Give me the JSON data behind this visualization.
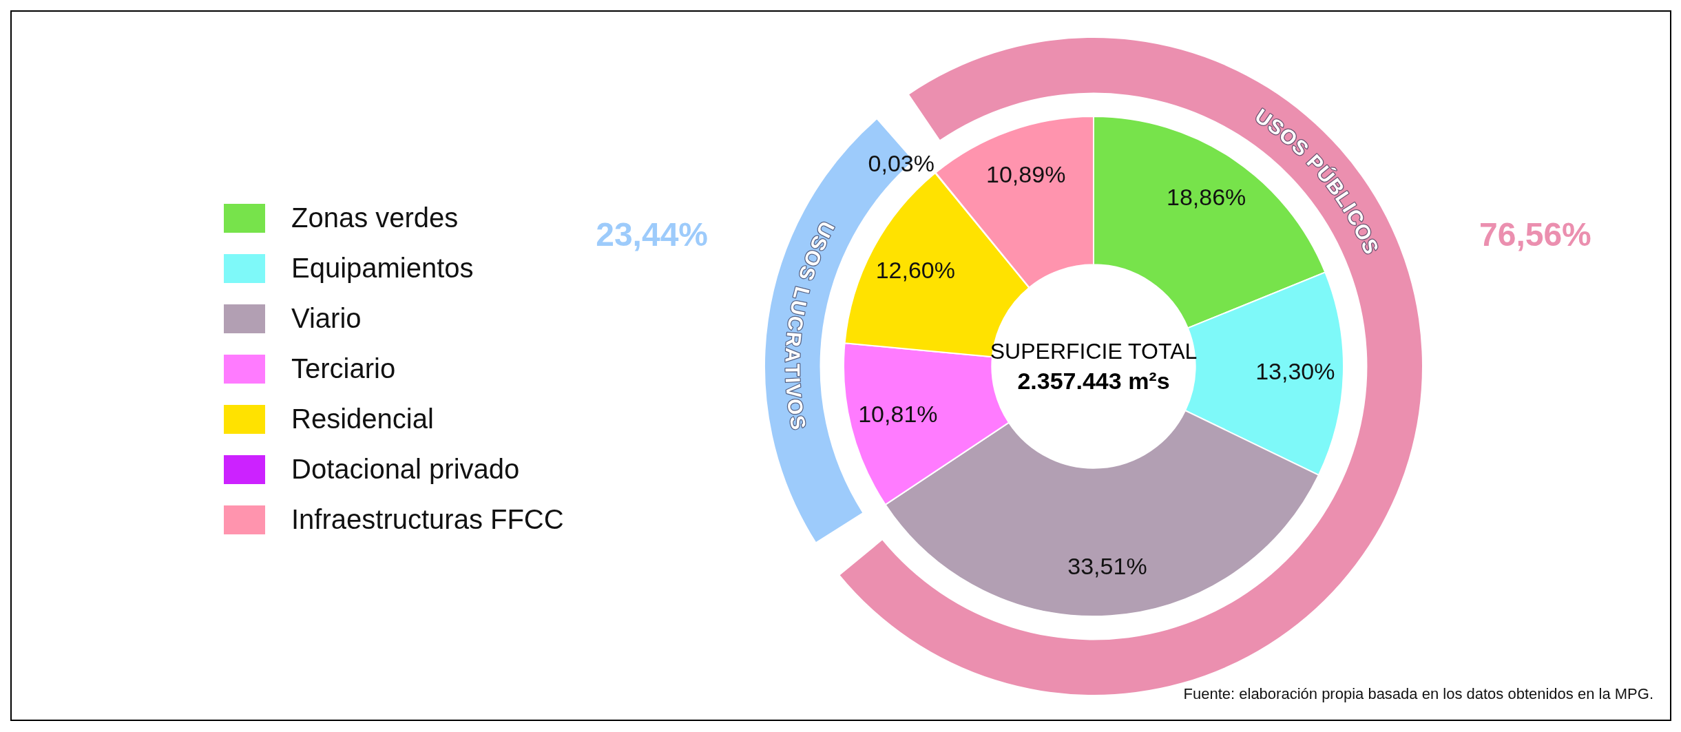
{
  "chart_data": [
    {
      "type": "donut",
      "title": "SUPERFICIE TOTAL",
      "subtitle": "2.357.443 m²s",
      "categories": [
        "Zonas verdes",
        "Equipamientos",
        "Viario",
        "Terciario",
        "Residencial",
        "Dotacional privado",
        "Infraestructuras FFCC"
      ],
      "values": [
        18.86,
        13.3,
        33.51,
        10.81,
        12.6,
        0.03,
        10.89
      ],
      "colors": [
        "#77e34b",
        "#7ef9f9",
        "#b29fb3",
        "#ff7bff",
        "#ffe200",
        "#cc22ff",
        "#ff94ae"
      ],
      "value_labels": [
        "18,86%",
        "13,30%",
        "33,51%",
        "10,81%",
        "12,60%",
        "0,03%",
        "10,89%"
      ],
      "legend": "left",
      "annotations": [
        "Fuente: elaboración propia basada en los datos obtenidos en la MPG."
      ]
    },
    {
      "type": "donut",
      "categories": [
        "USOS LUCRATIVOS",
        "USOS PÚBLICOS"
      ],
      "values": [
        23.44,
        76.56
      ],
      "colors": [
        "#9dcbfb",
        "#eb8faf"
      ],
      "value_labels": [
        "23,44%",
        "76,56%"
      ]
    }
  ]
}
